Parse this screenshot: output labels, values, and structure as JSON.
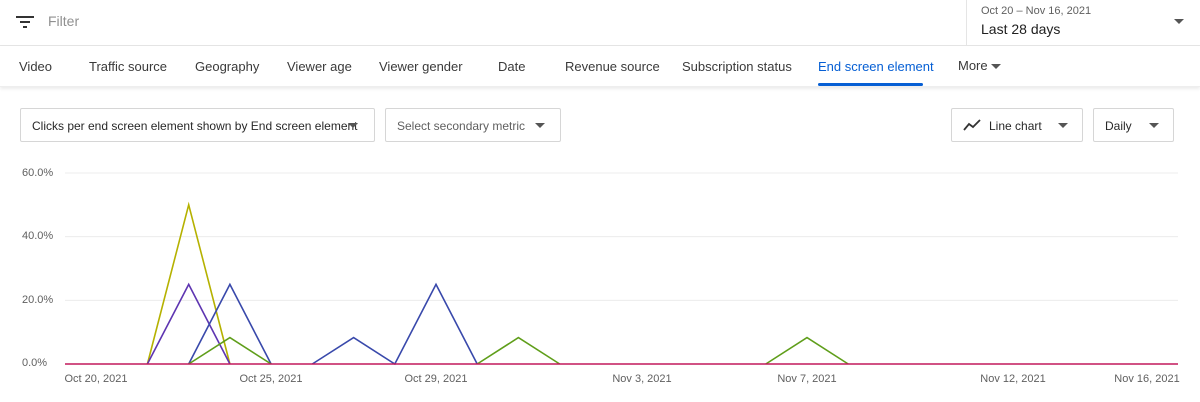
{
  "filter": {
    "placeholder": "Filter",
    "icon": "filter-icon"
  },
  "date_picker": {
    "range": "Oct 20 – Nov 16, 2021",
    "preset": "Last 28 days"
  },
  "tabs": [
    {
      "label": "Video"
    },
    {
      "label": "Traffic source"
    },
    {
      "label": "Geography"
    },
    {
      "label": "Viewer age"
    },
    {
      "label": "Viewer gender"
    },
    {
      "label": "Date"
    },
    {
      "label": "Revenue source"
    },
    {
      "label": "Subscription status"
    },
    {
      "label": "End screen element",
      "active": true
    },
    {
      "label": "More"
    }
  ],
  "controls": {
    "primary_metric": "Clicks per end screen element shown by End screen element",
    "secondary_metric": "Select secondary metric",
    "chart_type": "Line chart",
    "interval": "Daily"
  },
  "accent_color": "#065fd4",
  "chart_data": {
    "type": "line",
    "ylim": [
      0,
      60
    ],
    "y_ticks": [
      "0.0%",
      "20.0%",
      "40.0%",
      "60.0%"
    ],
    "x_start": "2021-10-20",
    "x_end": "2021-11-16",
    "x_ticks": [
      "Oct 20, 2021",
      "Oct 25, 2021",
      "Oct 29, 2021",
      "Nov 3, 2021",
      "Nov 7, 2021",
      "Nov 12, 2021",
      "Nov 16, 2021"
    ],
    "grid": true,
    "series": [
      {
        "color": "#c2185b",
        "segments": [
          [
            [
              "2021-10-20",
              0
            ],
            [
              "2021-11-16",
              0
            ]
          ]
        ]
      },
      {
        "color": "#b5b100",
        "segments": [
          [
            [
              "2021-10-22",
              0
            ],
            [
              "2021-10-23",
              50
            ],
            [
              "2021-10-24",
              0
            ]
          ]
        ]
      },
      {
        "color": "#5e35b1",
        "segments": [
          [
            [
              "2021-10-22",
              0
            ],
            [
              "2021-10-23",
              25
            ],
            [
              "2021-10-24",
              0
            ]
          ]
        ]
      },
      {
        "color": "#3949ab",
        "segments": [
          [
            [
              "2021-10-23",
              0
            ],
            [
              "2021-10-24",
              25
            ],
            [
              "2021-10-25",
              0
            ]
          ],
          [
            [
              "2021-10-26",
              0
            ],
            [
              "2021-10-27",
              8.3
            ],
            [
              "2021-10-28",
              0
            ],
            [
              "2021-10-29",
              25
            ],
            [
              "2021-10-30",
              0
            ]
          ]
        ]
      },
      {
        "color": "#5f9e1a",
        "segments": [
          [
            [
              "2021-10-23",
              0
            ],
            [
              "2021-10-24",
              8.3
            ],
            [
              "2021-10-25",
              0
            ]
          ],
          [
            [
              "2021-10-30",
              0
            ],
            [
              "2021-10-31",
              8.3
            ],
            [
              "2021-11-01",
              0
            ]
          ],
          [
            [
              "2021-11-06",
              0
            ],
            [
              "2021-11-07",
              8.3
            ],
            [
              "2021-11-08",
              0
            ]
          ]
        ]
      }
    ]
  }
}
